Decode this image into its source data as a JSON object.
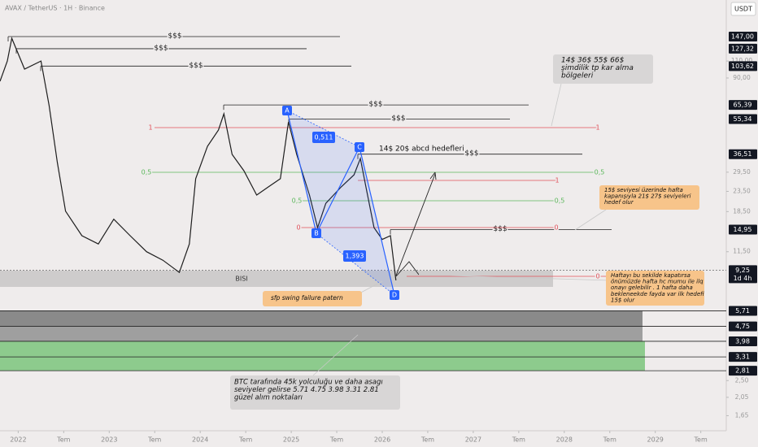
{
  "chart_data": {
    "type": "line",
    "title": "AVAX / TetherUS · 1H · Binance",
    "currency": "USDT",
    "countdown": "1d 4h",
    "log_scale": true,
    "color": "#1e1e1e",
    "x": [
      2021.8,
      2021.88,
      2021.93,
      2022.07,
      2022.25,
      2022.34,
      2022.43,
      2022.52,
      2022.7,
      2022.88,
      2023.05,
      2023.23,
      2023.41,
      2023.59,
      2023.77,
      2023.88,
      2023.95,
      2024.08,
      2024.2,
      2024.26,
      2024.35,
      2024.48,
      2024.62,
      2024.75,
      2024.88,
      2024.97,
      2025.06,
      2025.2,
      2025.29,
      2025.38,
      2025.55,
      2025.69,
      2025.76,
      2025.82,
      2025.91,
      2026.0,
      2026.09,
      2026.15
    ],
    "values": [
      86.6,
      110,
      144,
      100,
      110,
      64.9,
      33.1,
      18.6,
      13.9,
      12.6,
      16.9,
      13.9,
      11.5,
      10.4,
      9.0,
      12.6,
      27.3,
      40.1,
      48.6,
      58.9,
      36.4,
      30.0,
      22.5,
      24.8,
      27.3,
      53.5,
      36.4,
      22.5,
      15.3,
      20.4,
      24.8,
      28.6,
      34.7,
      24.8,
      15.3,
      13.3,
      13.9,
      8.2
    ],
    "xlim": [
      2021.8,
      2029.78
    ],
    "ylim": [
      1.38,
      226.7
    ],
    "xticks": [
      2022,
      {
        "value": 2022.5,
        "label": "Tem"
      },
      2023,
      {
        "value": 2023.5,
        "label": "Tem"
      },
      2024,
      {
        "value": 2024.5,
        "label": "Tem"
      },
      2025,
      {
        "value": 2025.5,
        "label": "Tem"
      },
      2026,
      {
        "value": 2026.5,
        "label": "Tem"
      },
      2027,
      {
        "value": 2027.5,
        "label": "Tem"
      },
      2028,
      {
        "value": 2028.5,
        "label": "Tem"
      },
      2029,
      {
        "value": 2029.5,
        "label": "Tem"
      }
    ],
    "yticks": [
      {
        "value": 110,
        "label": "110,00"
      },
      {
        "value": 90,
        "label": "90,00"
      },
      {
        "value": 29.5,
        "label": "29,50"
      },
      {
        "value": 23.5,
        "label": "23,50"
      },
      {
        "value": 18.5,
        "label": "18,50"
      },
      {
        "value": 11.5,
        "label": "11,50"
      },
      {
        "value": 2.5,
        "label": "2,50"
      },
      {
        "value": 2.05,
        "label": "2,05"
      },
      {
        "value": 1.65,
        "label": "1,65"
      }
    ],
    "levels": [
      {
        "value": 147,
        "label": "147,00"
      },
      {
        "value": 127.32,
        "label": "127,32"
      },
      {
        "value": 103.62,
        "label": "103,62"
      },
      {
        "value": 65.39,
        "label": "65,39"
      },
      {
        "value": 55.34,
        "label": "55,34"
      },
      {
        "value": 36.51,
        "label": "36,51"
      },
      {
        "value": 14.95,
        "label": "14,95"
      },
      {
        "value": 9.25,
        "label": "9,25"
      },
      {
        "value": 5.71,
        "label": "5,71"
      },
      {
        "value": 4.75,
        "label": "4,75"
      },
      {
        "value": 3.98,
        "label": "3,98"
      },
      {
        "value": 3.31,
        "label": "3,31"
      },
      {
        "value": 2.81,
        "label": "2,81"
      }
    ],
    "liquidity_labels": [
      "$$$",
      "$$$",
      "$$$",
      "$$$",
      "$$$",
      "$$$",
      "$$$"
    ],
    "fib_labels": [
      "1",
      "1",
      "0,5",
      "0,5",
      "1",
      "0,5",
      "0,5",
      "0",
      "0",
      "0"
    ],
    "pattern_points": [
      "A",
      "B",
      "C",
      "D"
    ],
    "ratios": [
      "0,511",
      "1,393"
    ],
    "zone_label": "BISI",
    "abcd_note": "14$  20$ abcd hedefleri",
    "notes": [
      {
        "lines": [
          "14$ 36$ 55$ 66$",
          "şimdilik tp kar alma",
          "bölgeleri"
        ]
      },
      {
        "lines": [
          "15$ seviyesi üzerinde hafta",
          "kapanışıyla 21$ 27$ seviyeleri",
          "hedef olur"
        ]
      },
      {
        "lines": [
          "Haftayı bu sekilde kapatırsa",
          "önümüzde hafta hc mumu ile  ilq",
          "onayı gelebilir . 1 hafta daha",
          "bekleneekde fayda var ilk hedefi",
          "15$ olur"
        ]
      },
      {
        "lines": [
          "sfp swing failure patern"
        ]
      },
      {
        "lines": [
          "BTC tarafında 45k yolculuğu ve daha asagı",
          "seviyeler gelirse 5.71 4.75 3.98 3.31 2.81",
          "güzel alım noktaları"
        ]
      }
    ]
  }
}
